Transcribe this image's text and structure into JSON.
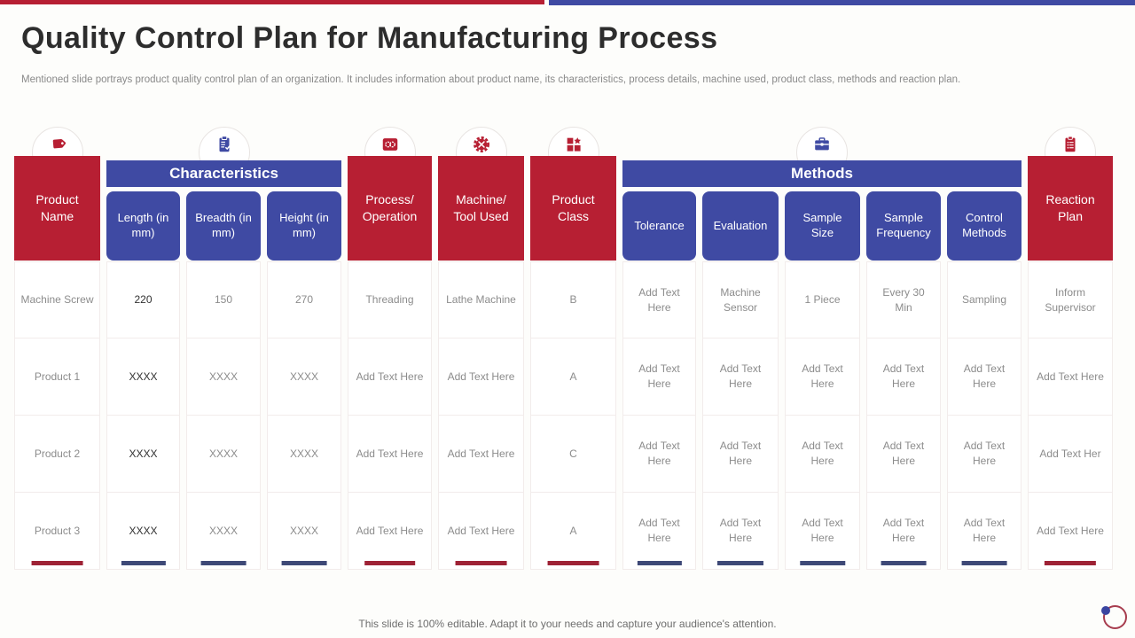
{
  "slide": {
    "title": "Quality Control Plan for Manufacturing Process",
    "subtitle": "Mentioned slide portrays product quality control plan of an organization. It includes information about product name, its characteristics, process details, machine used, product class, methods and reaction plan.",
    "footer_note": "This slide is 100% editable. Adapt it to your needs and capture your audience's attention."
  },
  "colors": {
    "red": "#B71F33",
    "blue": "#3F4AA3",
    "bar_red": "#9E2235",
    "bar_blue": "#3E4977",
    "accent_circle": "#A73C4E",
    "accent_dot": "#3A45A0"
  },
  "table": {
    "groups": [
      {
        "key": "characteristics",
        "label": "Characteristics",
        "icon": "clipboard-check-icon"
      },
      {
        "key": "methods",
        "label": "Methods",
        "icon": "toolbox-icon"
      }
    ],
    "columns": [
      {
        "key": "product_name",
        "label": "Product Name",
        "theme": "red",
        "icon": "tag-icon"
      },
      {
        "key": "length",
        "label": "Length (in mm)",
        "theme": "blue",
        "group": "characteristics"
      },
      {
        "key": "breadth",
        "label": "Breadth (in mm)",
        "theme": "blue",
        "group": "characteristics"
      },
      {
        "key": "height",
        "label": "Height (in mm)",
        "theme": "blue",
        "group": "characteristics"
      },
      {
        "key": "process_operation",
        "label": "Process/ Operation",
        "theme": "red",
        "icon": "gears-icon"
      },
      {
        "key": "machine_tool",
        "label": "Machine/ Tool Used",
        "theme": "red",
        "icon": "gear-tools-icon"
      },
      {
        "key": "product_class",
        "label": "Product Class",
        "theme": "red",
        "icon": "grid-star-icon"
      },
      {
        "key": "tolerance",
        "label": "Tolerance",
        "theme": "blue",
        "group": "methods"
      },
      {
        "key": "evaluation",
        "label": "Evaluation",
        "theme": "blue",
        "group": "methods"
      },
      {
        "key": "sample_size",
        "label": "Sample Size",
        "theme": "blue",
        "group": "methods"
      },
      {
        "key": "sample_frequency",
        "label": "Sample Frequency",
        "theme": "blue",
        "group": "methods"
      },
      {
        "key": "control_methods",
        "label": "Control Methods",
        "theme": "blue",
        "group": "methods"
      },
      {
        "key": "reaction_plan",
        "label": "Reaction Plan",
        "theme": "red",
        "icon": "clipboard-list-icon"
      }
    ],
    "rows": [
      [
        "Machine Screw",
        "220",
        "150",
        "270",
        "Threading",
        "Lathe Machine",
        "B",
        "Add Text Here",
        "Machine Sensor",
        "1 Piece",
        "Every 30 Min",
        "Sampling",
        "Inform Supervisor"
      ],
      [
        "Product 1",
        "XXXX",
        "XXXX",
        "XXXX",
        "Add Text Here",
        "Add Text Here",
        "A",
        "Add Text Here",
        "Add Text Here",
        "Add Text Here",
        "Add Text Here",
        "Add Text Here",
        "Add Text Here"
      ],
      [
        "Product 2",
        "XXXX",
        "XXXX",
        "XXXX",
        "Add Text Here",
        "Add Text Here",
        "C",
        "Add Text Here",
        "Add Text Here",
        "Add Text Here",
        "Add Text Here",
        "Add Text Here",
        "Add Text Her"
      ],
      [
        "Product 3",
        "XXXX",
        "XXXX",
        "XXXX",
        "Add Text Here",
        "Add Text Here",
        "A",
        "Add Text Here",
        "Add Text Here",
        "Add Text Here",
        "Add Text Here",
        "Add Text Here",
        "Add Text Here"
      ]
    ],
    "dark_value_column": 1
  }
}
